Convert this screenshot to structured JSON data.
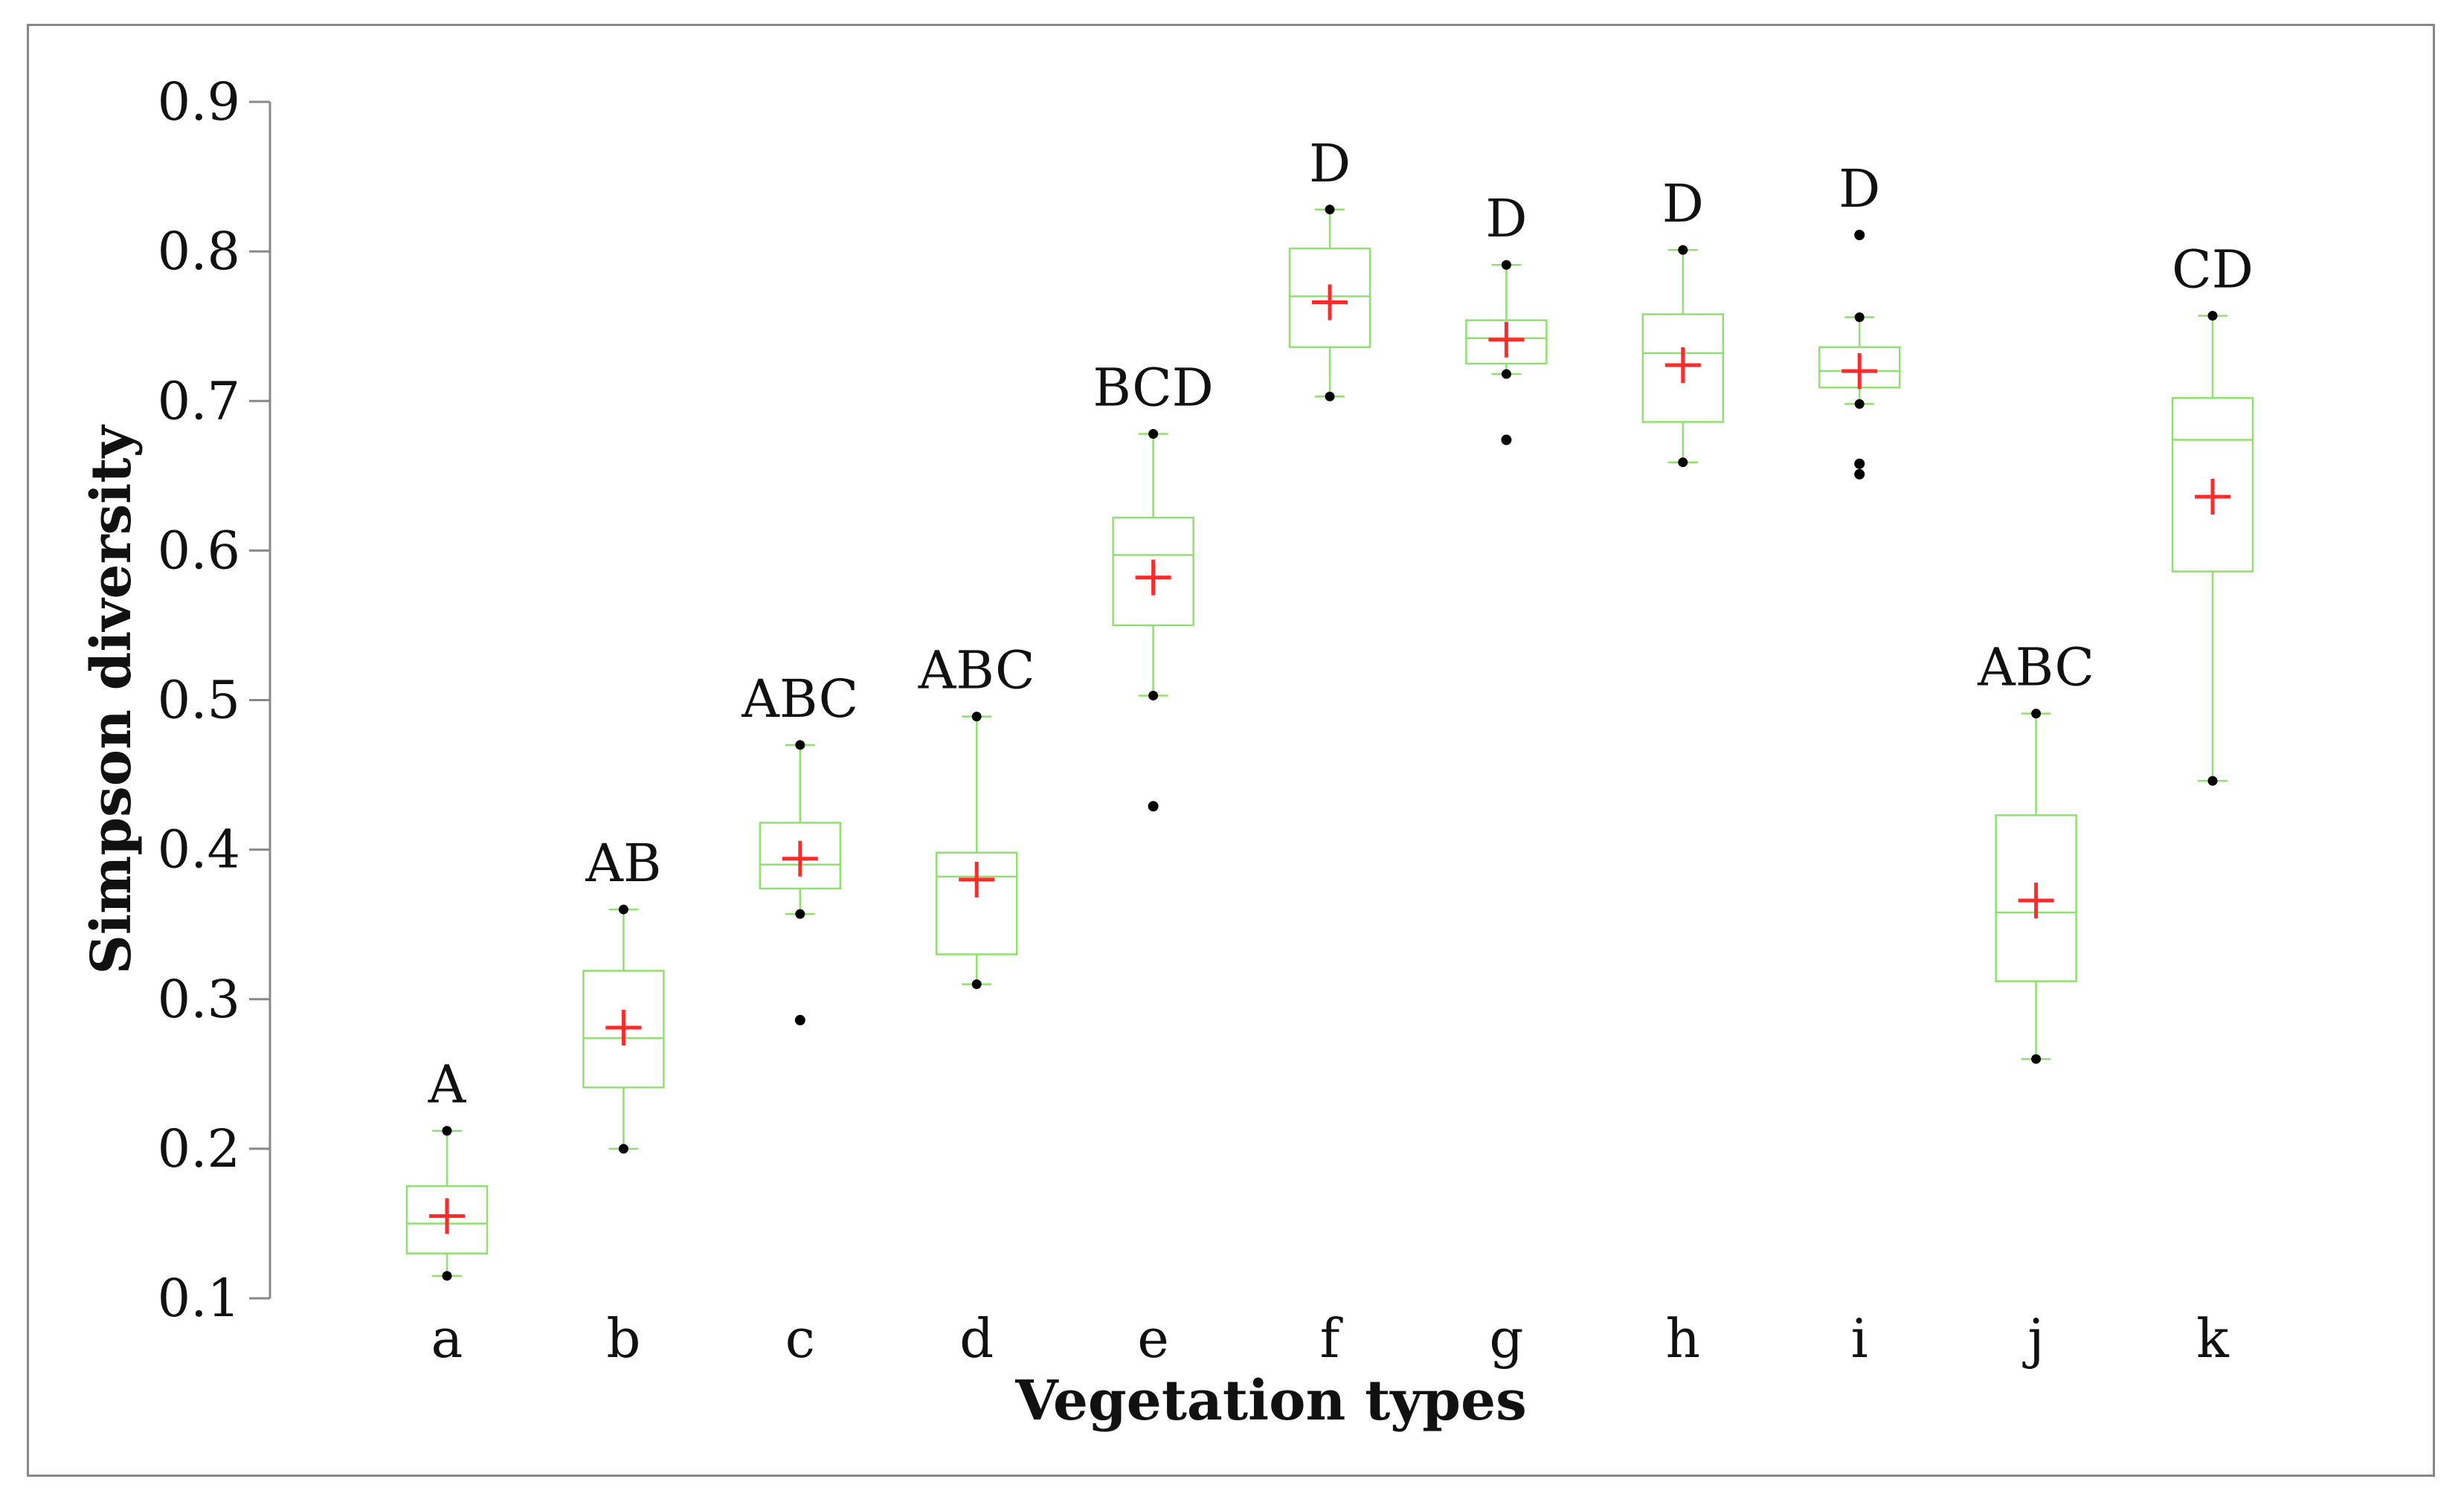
{
  "chart_data": {
    "type": "boxplot",
    "title": "",
    "xlabel": "Vegetation types",
    "ylabel": "Simpson diversity",
    "ylim": [
      0.1,
      0.9
    ],
    "yticks": [
      "0.1",
      "0.2",
      "0.3",
      "0.4",
      "0.5",
      "0.6",
      "0.7",
      "0.8",
      "0.9"
    ],
    "categories": [
      "a",
      "b",
      "c",
      "d",
      "e",
      "f",
      "g",
      "h",
      "i",
      "j",
      "k"
    ],
    "boxes": [
      {
        "category": "a",
        "min": 0.115,
        "q1": 0.13,
        "median": 0.15,
        "q3": 0.175,
        "max": 0.212,
        "mean": 0.155,
        "outliers": [],
        "letters": "A"
      },
      {
        "category": "b",
        "min": 0.2,
        "q1": 0.241,
        "median": 0.274,
        "q3": 0.319,
        "max": 0.36,
        "mean": 0.281,
        "outliers": [],
        "letters": "AB"
      },
      {
        "category": "c",
        "min": 0.357,
        "q1": 0.374,
        "median": 0.39,
        "q3": 0.418,
        "max": 0.47,
        "mean": 0.394,
        "outliers": [
          0.286
        ],
        "letters": "ABC"
      },
      {
        "category": "d",
        "min": 0.31,
        "q1": 0.33,
        "median": 0.382,
        "q3": 0.398,
        "max": 0.489,
        "mean": 0.38,
        "outliers": [],
        "letters": "ABC"
      },
      {
        "category": "e",
        "min": 0.503,
        "q1": 0.55,
        "median": 0.597,
        "q3": 0.622,
        "max": 0.678,
        "mean": 0.582,
        "outliers": [
          0.429
        ],
        "letters": "BCD"
      },
      {
        "category": "f",
        "min": 0.703,
        "q1": 0.736,
        "median": 0.77,
        "q3": 0.802,
        "max": 0.828,
        "mean": 0.766,
        "outliers": [],
        "letters": "D"
      },
      {
        "category": "g",
        "min": 0.718,
        "q1": 0.725,
        "median": 0.742,
        "q3": 0.754,
        "max": 0.791,
        "mean": 0.741,
        "outliers": [
          0.674
        ],
        "letters": "D"
      },
      {
        "category": "h",
        "min": 0.659,
        "q1": 0.686,
        "median": 0.732,
        "q3": 0.758,
        "max": 0.801,
        "mean": 0.724,
        "outliers": [],
        "letters": "D"
      },
      {
        "category": "i",
        "min": 0.698,
        "q1": 0.709,
        "median": 0.72,
        "q3": 0.736,
        "max": 0.756,
        "mean": 0.72,
        "outliers": [
          0.651,
          0.658,
          0.811
        ],
        "letters": "D"
      },
      {
        "category": "j",
        "min": 0.26,
        "q1": 0.312,
        "median": 0.358,
        "q3": 0.423,
        "max": 0.491,
        "mean": 0.366,
        "outliers": [],
        "letters": "ABC"
      },
      {
        "category": "k",
        "min": 0.446,
        "q1": 0.586,
        "median": 0.674,
        "q3": 0.702,
        "max": 0.757,
        "mean": 0.636,
        "outliers": [],
        "letters": "CD"
      }
    ],
    "colors": {
      "box": "#90e070",
      "mean_marker": "#ff2a2a",
      "point": "#000000",
      "axis": "#888888",
      "frame": "#888888"
    }
  }
}
